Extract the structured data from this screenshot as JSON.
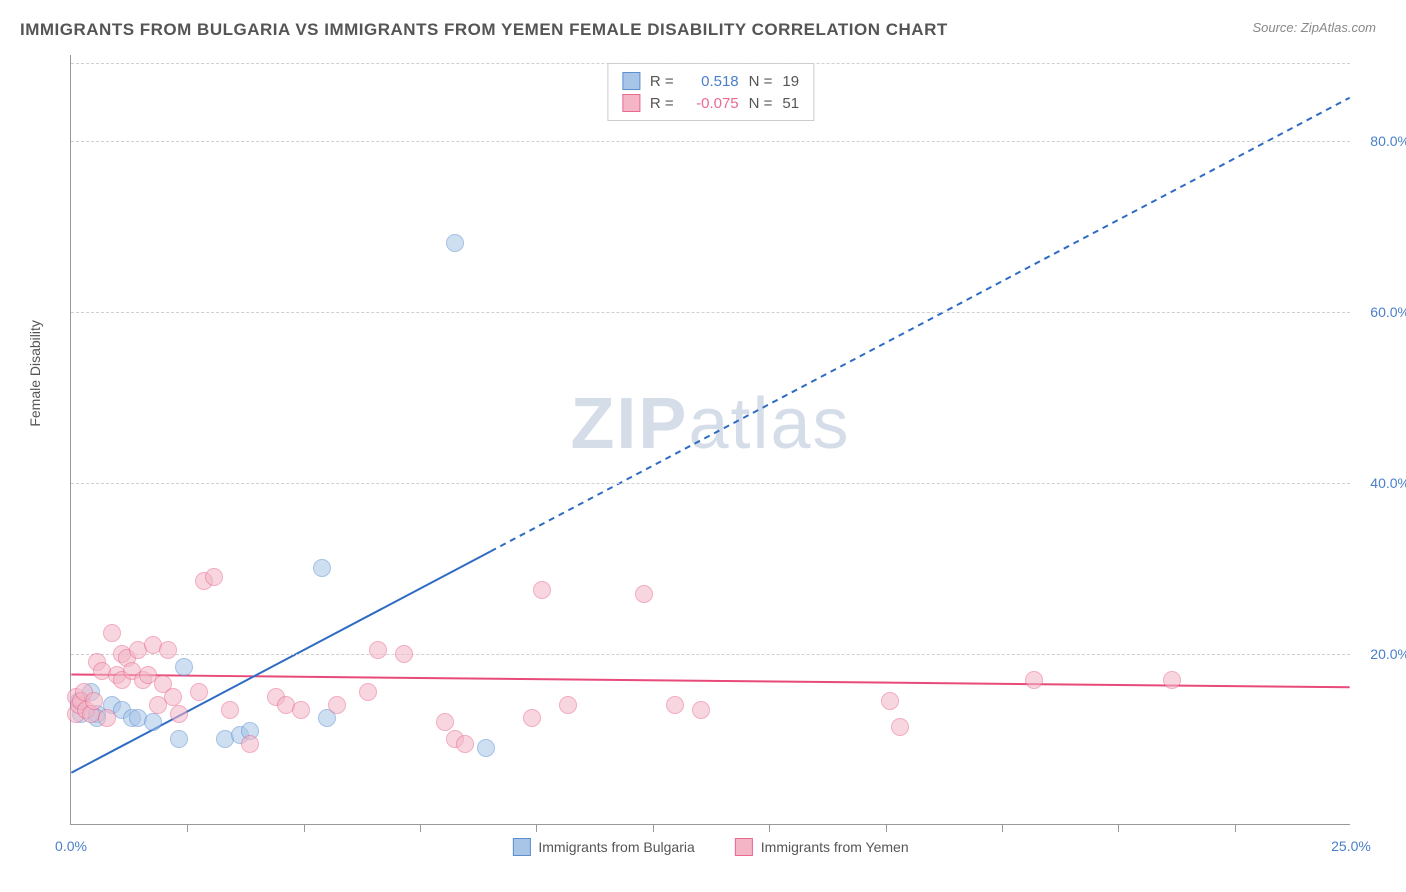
{
  "header": {
    "title": "IMMIGRANTS FROM BULGARIA VS IMMIGRANTS FROM YEMEN FEMALE DISABILITY CORRELATION CHART",
    "source": "Source: ZipAtlas.com"
  },
  "watermark": {
    "zip": "ZIP",
    "atlas": "atlas"
  },
  "chart": {
    "type": "scatter",
    "y_label": "Female Disability",
    "xlim": [
      0,
      25
    ],
    "ylim": [
      0,
      90
    ],
    "x_ticks": [
      0.0,
      25.0
    ],
    "x_tick_labels": [
      "0.0%",
      "25.0%"
    ],
    "x_minor_ticks": [
      2.27,
      4.55,
      6.82,
      9.09,
      11.36,
      13.64,
      15.91,
      18.18,
      20.45,
      22.73
    ],
    "y_ticks": [
      20.0,
      40.0,
      60.0,
      80.0
    ],
    "y_tick_labels": [
      "20.0%",
      "40.0%",
      "60.0%",
      "80.0%"
    ],
    "background_color": "#ffffff",
    "grid_color": "#d0d0d0",
    "series": [
      {
        "name": "Immigrants from Bulgaria",
        "fill_color": "#a8c5e8",
        "stroke_color": "#5b8fd0",
        "fill_opacity": 0.55,
        "marker_radius": 9,
        "r_value": "0.518",
        "n_value": "19",
        "trend": {
          "x1": 0,
          "y1": 6.0,
          "x2": 25,
          "y2": 85.0,
          "solid_until_x": 8.2,
          "color": "#2e6cc4",
          "width": 2
        },
        "points": [
          [
            0.15,
            14.5
          ],
          [
            0.2,
            13.0
          ],
          [
            0.4,
            15.5
          ],
          [
            0.5,
            13.0
          ],
          [
            0.5,
            12.5
          ],
          [
            0.8,
            14.0
          ],
          [
            1.0,
            13.5
          ],
          [
            1.2,
            12.5
          ],
          [
            1.3,
            12.5
          ],
          [
            1.6,
            12.0
          ],
          [
            2.1,
            10.0
          ],
          [
            2.2,
            18.5
          ],
          [
            3.0,
            10.0
          ],
          [
            3.3,
            10.5
          ],
          [
            3.5,
            11.0
          ],
          [
            4.9,
            30.0
          ],
          [
            5.0,
            12.5
          ],
          [
            7.5,
            68.0
          ],
          [
            8.1,
            9.0
          ]
        ]
      },
      {
        "name": "Immigrants from Yemen",
        "fill_color": "#f4b6c6",
        "stroke_color": "#e86a8f",
        "fill_opacity": 0.55,
        "marker_radius": 9,
        "r_value": "-0.075",
        "n_value": "51",
        "trend": {
          "x1": 0,
          "y1": 17.5,
          "x2": 25,
          "y2": 16.0,
          "solid_until_x": 25,
          "color": "#e84a7a",
          "width": 2
        },
        "points": [
          [
            0.1,
            15.0
          ],
          [
            0.1,
            13.0
          ],
          [
            0.15,
            14.0
          ],
          [
            0.2,
            14.5
          ],
          [
            0.25,
            15.5
          ],
          [
            0.3,
            13.5
          ],
          [
            0.4,
            13.0
          ],
          [
            0.45,
            14.5
          ],
          [
            0.5,
            19.0
          ],
          [
            0.6,
            18.0
          ],
          [
            0.7,
            12.5
          ],
          [
            0.8,
            22.5
          ],
          [
            0.9,
            17.5
          ],
          [
            1.0,
            20.0
          ],
          [
            1.0,
            17.0
          ],
          [
            1.1,
            19.5
          ],
          [
            1.2,
            18.0
          ],
          [
            1.3,
            20.5
          ],
          [
            1.4,
            17.0
          ],
          [
            1.5,
            17.5
          ],
          [
            1.6,
            21.0
          ],
          [
            1.7,
            14.0
          ],
          [
            1.8,
            16.5
          ],
          [
            1.9,
            20.5
          ],
          [
            2.0,
            15.0
          ],
          [
            2.1,
            13.0
          ],
          [
            2.5,
            15.5
          ],
          [
            2.6,
            28.5
          ],
          [
            2.8,
            29.0
          ],
          [
            3.1,
            13.5
          ],
          [
            3.5,
            9.5
          ],
          [
            4.0,
            15.0
          ],
          [
            4.2,
            14.0
          ],
          [
            4.5,
            13.5
          ],
          [
            5.2,
            14.0
          ],
          [
            5.8,
            15.5
          ],
          [
            6.0,
            20.5
          ],
          [
            6.5,
            20.0
          ],
          [
            7.3,
            12.0
          ],
          [
            7.5,
            10.0
          ],
          [
            7.7,
            9.5
          ],
          [
            9.0,
            12.5
          ],
          [
            9.2,
            27.5
          ],
          [
            9.7,
            14.0
          ],
          [
            11.2,
            27.0
          ],
          [
            11.8,
            14.0
          ],
          [
            12.3,
            13.5
          ],
          [
            16.0,
            14.5
          ],
          [
            16.2,
            11.5
          ],
          [
            18.8,
            17.0
          ],
          [
            21.5,
            17.0
          ]
        ]
      }
    ]
  },
  "legend_labels": {
    "r_prefix": "R = ",
    "n_prefix": "N = "
  }
}
